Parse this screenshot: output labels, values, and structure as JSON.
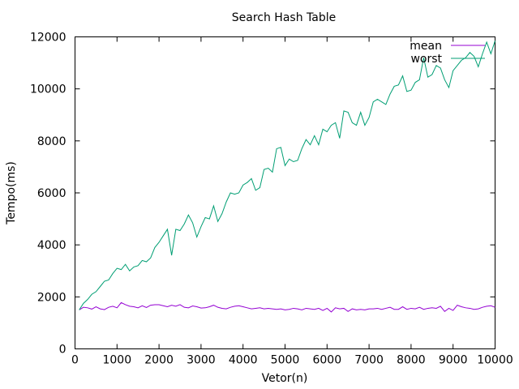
{
  "chart_data": {
    "type": "line",
    "title": "Search Hash Table",
    "xlabel": "Vetor(n)",
    "ylabel": "Tempo(ms)",
    "xlim": [
      0,
      10000
    ],
    "ylim": [
      0,
      12000
    ],
    "xticks": [
      0,
      1000,
      2000,
      3000,
      4000,
      5000,
      6000,
      7000,
      8000,
      9000,
      10000
    ],
    "yticks": [
      0,
      2000,
      4000,
      6000,
      8000,
      10000,
      12000
    ],
    "xtick_labels": [
      "0",
      "1000",
      "2000",
      "3000",
      "4000",
      "5000",
      "6000",
      "7000",
      "8000",
      "9000",
      "10000"
    ],
    "ytick_labels": [
      "0",
      "2000",
      "4000",
      "6000",
      "8000",
      "10000",
      "12000"
    ],
    "grid": false,
    "legend_position": "top-right",
    "series": [
      {
        "name": "mean",
        "color": "#9400d3",
        "x": [
          100,
          200,
          300,
          400,
          500,
          600,
          700,
          800,
          900,
          1000,
          1100,
          1200,
          1300,
          1400,
          1500,
          1600,
          1700,
          1800,
          1900,
          2000,
          2100,
          2200,
          2300,
          2400,
          2500,
          2600,
          2700,
          2800,
          2900,
          3000,
          3100,
          3200,
          3300,
          3400,
          3500,
          3600,
          3700,
          3800,
          3900,
          4000,
          4100,
          4200,
          4300,
          4400,
          4500,
          4600,
          4700,
          4800,
          4900,
          5000,
          5100,
          5200,
          5300,
          5400,
          5500,
          5600,
          5700,
          5800,
          5900,
          6000,
          6100,
          6200,
          6300,
          6400,
          6500,
          6600,
          6700,
          6800,
          6900,
          7000,
          7100,
          7200,
          7300,
          7400,
          7500,
          7600,
          7700,
          7800,
          7900,
          8000,
          8100,
          8200,
          8300,
          8400,
          8500,
          8600,
          8700,
          8800,
          8900,
          9000,
          9100,
          9200,
          9300,
          9400,
          9500,
          9600,
          9700,
          9800,
          9900,
          10000
        ],
        "y": [
          1500,
          1600,
          1580,
          1530,
          1620,
          1540,
          1510,
          1600,
          1640,
          1580,
          1780,
          1700,
          1640,
          1620,
          1580,
          1660,
          1590,
          1680,
          1700,
          1700,
          1660,
          1620,
          1680,
          1640,
          1700,
          1600,
          1580,
          1650,
          1620,
          1570,
          1580,
          1620,
          1680,
          1600,
          1560,
          1540,
          1600,
          1640,
          1660,
          1620,
          1580,
          1540,
          1560,
          1580,
          1540,
          1560,
          1540,
          1520,
          1540,
          1500,
          1520,
          1560,
          1540,
          1500,
          1560,
          1540,
          1520,
          1560,
          1480,
          1560,
          1420,
          1580,
          1540,
          1560,
          1440,
          1540,
          1500,
          1520,
          1500,
          1540,
          1540,
          1560,
          1520,
          1560,
          1600,
          1520,
          1520,
          1620,
          1520,
          1560,
          1540,
          1600,
          1520,
          1560,
          1580,
          1560,
          1640,
          1440,
          1560,
          1480,
          1680,
          1620,
          1580,
          1560,
          1520,
          1540,
          1600,
          1640,
          1660,
          1600
        ]
      },
      {
        "name": "worst",
        "color": "#009e73",
        "x": [
          100,
          200,
          300,
          400,
          500,
          600,
          700,
          800,
          900,
          1000,
          1100,
          1200,
          1300,
          1400,
          1500,
          1600,
          1700,
          1800,
          1900,
          2000,
          2100,
          2200,
          2300,
          2400,
          2500,
          2600,
          2700,
          2800,
          2900,
          3000,
          3100,
          3200,
          3300,
          3400,
          3500,
          3600,
          3700,
          3800,
          3900,
          4000,
          4100,
          4200,
          4300,
          4400,
          4500,
          4600,
          4700,
          4800,
          4900,
          5000,
          5100,
          5200,
          5300,
          5400,
          5500,
          5600,
          5700,
          5800,
          5900,
          6000,
          6100,
          6200,
          6300,
          6400,
          6500,
          6600,
          6700,
          6800,
          6900,
          7000,
          7100,
          7200,
          7300,
          7400,
          7500,
          7600,
          7700,
          7800,
          7900,
          8000,
          8100,
          8200,
          8300,
          8400,
          8500,
          8600,
          8700,
          8800,
          8900,
          9000,
          9100,
          9200,
          9300,
          9400,
          9500,
          9600,
          9700,
          9800,
          9900,
          10000
        ],
        "y": [
          1500,
          1750,
          1900,
          2100,
          2200,
          2400,
          2600,
          2650,
          2900,
          3100,
          3050,
          3250,
          3000,
          3150,
          3200,
          3400,
          3350,
          3500,
          3900,
          4100,
          4350,
          4600,
          3600,
          4600,
          4550,
          4800,
          5150,
          4850,
          4300,
          4700,
          5050,
          5000,
          5500,
          4900,
          5200,
          5650,
          6000,
          5950,
          6000,
          6300,
          6400,
          6550,
          6100,
          6200,
          6900,
          6950,
          6800,
          7700,
          7750,
          7050,
          7300,
          7200,
          7250,
          7700,
          8050,
          7850,
          8200,
          7850,
          8450,
          8350,
          8600,
          8700,
          8100,
          9150,
          9100,
          8700,
          8600,
          9100,
          8600,
          8900,
          9500,
          9600,
          9500,
          9400,
          9800,
          10100,
          10150,
          10500,
          9900,
          9950,
          10250,
          10350,
          11200,
          10450,
          10550,
          10900,
          10800,
          10350,
          10050,
          10700,
          10900,
          11100,
          11200,
          11400,
          11250,
          10850,
          11350,
          11800,
          11350,
          11850
        ]
      }
    ]
  }
}
